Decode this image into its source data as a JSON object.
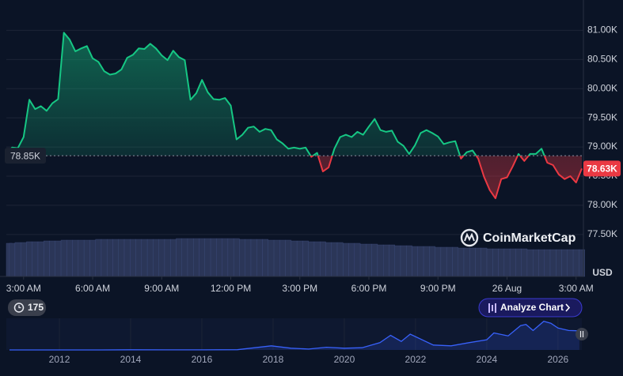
{
  "chart_data": {
    "type": "line",
    "x": [
      2.25,
      2.5,
      2.75,
      3,
      3.25,
      3.5,
      3.75,
      4,
      4.25,
      4.5,
      4.75,
      5,
      5.25,
      5.5,
      5.75,
      6,
      6.25,
      6.5,
      6.75,
      7,
      7.25,
      7.5,
      7.75,
      8,
      8.25,
      8.5,
      8.75,
      9,
      9.25,
      9.5,
      9.75,
      10,
      10.25,
      10.5,
      10.75,
      11,
      11.25,
      11.5,
      11.75,
      12,
      12.25,
      12.5,
      12.75,
      13,
      13.25,
      13.5,
      13.75,
      14,
      14.25,
      14.5,
      14.75,
      15,
      15.25,
      15.5,
      15.75,
      16,
      16.25,
      16.5,
      16.75,
      17,
      17.25,
      17.5,
      17.75,
      18,
      18.25,
      18.5,
      18.75,
      19,
      19.25,
      19.5,
      19.75,
      20,
      20.25,
      20.5,
      20.75,
      21,
      21.25,
      21.5,
      21.75,
      22,
      22.25,
      22.5,
      22.75,
      23,
      23.25,
      23.5,
      23.75,
      24,
      24.25,
      24.5,
      24.75,
      25,
      25.25,
      25.5,
      25.75,
      26,
      26.25,
      26.5,
      26.75,
      27,
      27.25
    ],
    "values": [
      78900,
      78990,
      78980,
      79170,
      79810,
      79650,
      79700,
      79620,
      79750,
      79820,
      80960,
      80840,
      80640,
      80690,
      80730,
      80520,
      80460,
      80300,
      80240,
      80260,
      80330,
      80530,
      80580,
      80690,
      80680,
      80770,
      80690,
      80570,
      80490,
      80650,
      80540,
      80490,
      79810,
      79920,
      80150,
      79940,
      79820,
      79810,
      79840,
      79710,
      79130,
      79210,
      79330,
      79350,
      79260,
      79310,
      79290,
      79130,
      79060,
      78970,
      78990,
      78970,
      78990,
      78830,
      78900,
      78580,
      78650,
      78970,
      79170,
      79210,
      79170,
      79260,
      79210,
      79350,
      79480,
      79290,
      79260,
      79280,
      79090,
      79020,
      78880,
      79030,
      79240,
      79290,
      79240,
      79180,
      79050,
      79080,
      79100,
      78800,
      78910,
      78940,
      78800,
      78490,
      78260,
      78120,
      78450,
      78480,
      78670,
      78880,
      78760,
      78880,
      78880,
      78970,
      78730,
      78690,
      78530,
      78450,
      78500,
      78390,
      78630
    ],
    "volume": [
      42,
      42,
      43,
      43,
      44,
      44,
      44,
      45,
      45,
      45,
      46,
      46,
      46,
      46,
      46,
      46,
      47,
      47,
      47,
      47,
      47,
      47,
      47,
      47,
      47,
      47,
      47,
      47,
      47,
      47,
      48,
      48,
      48,
      48,
      48,
      48,
      48,
      48,
      48,
      48,
      48,
      47,
      47,
      47,
      47,
      47,
      46,
      46,
      46,
      46,
      45,
      45,
      45,
      44,
      44,
      44,
      43,
      43,
      43,
      42,
      42,
      42,
      41,
      41,
      41,
      40,
      40,
      40,
      39,
      39,
      39,
      38,
      38,
      38,
      38,
      37,
      37,
      37,
      37,
      36,
      36,
      36,
      36,
      36,
      35,
      35,
      35,
      35,
      35,
      35,
      35,
      34,
      34,
      34,
      34,
      34,
      34,
      34,
      34,
      34,
      34
    ],
    "xlim": [
      2.25,
      27.25
    ],
    "xticks": [
      {
        "value": 3,
        "label": "3:00 AM"
      },
      {
        "value": 6,
        "label": "6:00 AM"
      },
      {
        "value": 9,
        "label": "9:00 AM"
      },
      {
        "value": 12,
        "label": "12:00 PM"
      },
      {
        "value": 15,
        "label": "3:00 PM"
      },
      {
        "value": 18,
        "label": "6:00 PM"
      },
      {
        "value": 21,
        "label": "9:00 PM"
      },
      {
        "value": 24,
        "label": "26 Aug"
      },
      {
        "value": 27,
        "label": "3:00 AM"
      }
    ],
    "ylim": [
      76780,
      81520
    ],
    "yticks": [
      {
        "value": 77500,
        "label": "77.50K"
      },
      {
        "value": 78000,
        "label": "78.00K"
      },
      {
        "value": 78500,
        "label": "78.50K"
      },
      {
        "value": 79000,
        "label": "79.00K"
      },
      {
        "value": 79500,
        "label": "79.50K"
      },
      {
        "value": 80000,
        "label": "80.00K"
      },
      {
        "value": 80500,
        "label": "80.50K"
      },
      {
        "value": 81000,
        "label": "81.00K"
      }
    ],
    "grid": true,
    "baseline": {
      "value": 78850,
      "label": "78.85K"
    },
    "last_value_label": "78.63K",
    "up_color": "#16c784",
    "down_color": "#ea3943",
    "currency": "USD",
    "watermark": "CoinMarketCap",
    "indicator_badge": "175",
    "button": "Analyze Chart",
    "navigator": {
      "type": "line",
      "color": "#3861fb",
      "x": [
        2010.6,
        2011.5,
        2012,
        2013,
        2014,
        2015,
        2016,
        2017,
        2017.95,
        2018.5,
        2019,
        2019.5,
        2020,
        2020.5,
        2021,
        2021.3,
        2021.6,
        2021.85,
        2022.5,
        2023,
        2023.5,
        2024,
        2024.2,
        2024.6,
        2024.95,
        2025.1,
        2025.3,
        2025.6,
        2025.8,
        2026,
        2026.3,
        2026.6
      ],
      "values": [
        0,
        15,
        5,
        100,
        800,
        300,
        400,
        1000,
        17000,
        7000,
        3700,
        11000,
        7000,
        9000,
        30000,
        60000,
        35000,
        65000,
        20000,
        17000,
        30000,
        42000,
        70000,
        58000,
        100000,
        105000,
        80000,
        118000,
        110000,
        90000,
        80000,
        78630
      ],
      "xlim": [
        2010.51,
        2026.67
      ],
      "ylim": [
        0,
        130000
      ],
      "xticks": [
        2012,
        2014,
        2016,
        2018,
        2020,
        2022,
        2024,
        2026
      ]
    }
  }
}
